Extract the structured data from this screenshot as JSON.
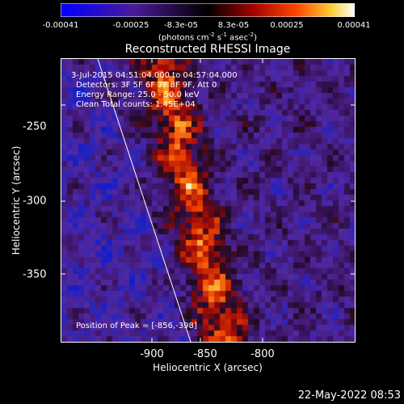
{
  "colorbar": {
    "ticks": [
      "-0.00041",
      "-0.00025",
      "-8.3e-05",
      "8.3e-05",
      "0.00025",
      "0.00041"
    ],
    "units_prefix": "(photons cm",
    "units_exp1": "-2",
    "units_mid1": " s",
    "units_exp2": "-1",
    "units_mid2": " asec",
    "units_exp3": "-2",
    "units_suffix": ")",
    "colors": [
      "#0000ff",
      "#3b0a8c",
      "#000000",
      "#8c0000",
      "#ff3300",
      "#ffcc33",
      "#ffffff"
    ]
  },
  "plot": {
    "title": "Reconstructed RHESSI Image",
    "ann_time": "3-Jul-2015 04:51:04.000 to 04:57:04.000",
    "ann_detectors": "Detectors: 3F 5F 6F 7F 8F 9F, Att 0",
    "ann_energy": "Energy Range: 25.0 - 50.0 keV",
    "ann_clean": "Clean     Total counts: 1.45E+04",
    "ann_peak": "Position of Peak = [-856,-398]"
  },
  "axes": {
    "xlabel": "Heliocentric X (arcsec)",
    "ylabel": "Heliocentric Y (arcsec)",
    "xticks": [
      "-900",
      "-850",
      "-800"
    ],
    "yticks": [
      "-250",
      "-300",
      "-350"
    ]
  },
  "footer": {
    "timestamp": "22-May-2022 08:53"
  }
}
